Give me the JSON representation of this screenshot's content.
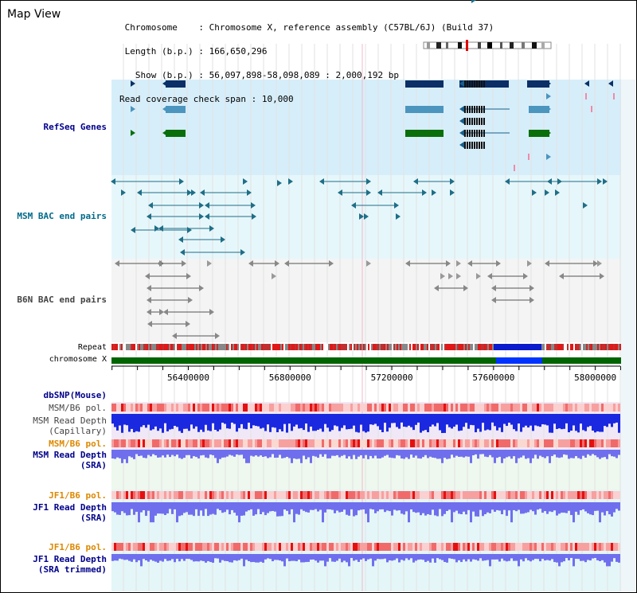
{
  "view_title": "Map View",
  "info": {
    "chromosome_key": "Chromosome",
    "chromosome_val": "Chromosome X, reference assembly (C57BL/6J) (Build 37)",
    "length_key": "Length (b.p.)",
    "length_val": "166,650,296",
    "show_key": "Show (b.p.)",
    "show_val": "56,097,898-58,098,089 : 2,000,192 bp",
    "coverage_key": "Read coverage check span",
    "coverage_val": "10,000"
  },
  "tracks": {
    "refseq": "RefSeq Genes",
    "msm_bac": "MSM BAC end pairs",
    "b6n_bac": "B6N BAC end pairs",
    "repeat": "Repeat",
    "chromosome": "chromosome X",
    "dbsnp": "dbSNP(Mouse)",
    "msm_b6_pol_1": "MSM/B6 pol.",
    "msm_read_depth_cap_1": "MSM Read Depth",
    "msm_read_depth_cap_2": "(Capillary)",
    "msm_b6_pol_2": "MSM/B6 pol.",
    "msm_read_depth_sra_1": "MSM Read Depth",
    "msm_read_depth_sra_2": "(SRA)",
    "jf1_b6_pol_1": "JF1/B6 pol.",
    "jf1_read_depth_sra_1": "JF1 Read Depth",
    "jf1_read_depth_sra_2": "(SRA)",
    "jf1_b6_pol_2": "JF1/B6 pol.",
    "jf1_read_depth_trim_1": "JF1 Read Depth",
    "jf1_read_depth_trim_2": "(SRA trimmed)"
  },
  "axis": {
    "range": [
      56097898,
      58098089
    ],
    "tick_labels": [
      "56400000",
      "56800000",
      "57200000",
      "57600000",
      "58000000"
    ]
  },
  "colors": {
    "refseq_bg": "#d6eefa",
    "msm_bg": "#e6f7fb",
    "b6n_bg": "#f4f4f4",
    "navy_gene": "#0b2f66",
    "blue_gene": "#4b95bf",
    "green_gene": "#0a6f0a",
    "teal_bac": "#1f6e87",
    "chrom_green": "#006400",
    "chrom_blue": "#0033ff",
    "depth_blue": "#1a28e0",
    "depth_violet": "#6f6fee"
  },
  "icons": {
    "ideogram": "chromosome-ideogram-icon"
  }
}
